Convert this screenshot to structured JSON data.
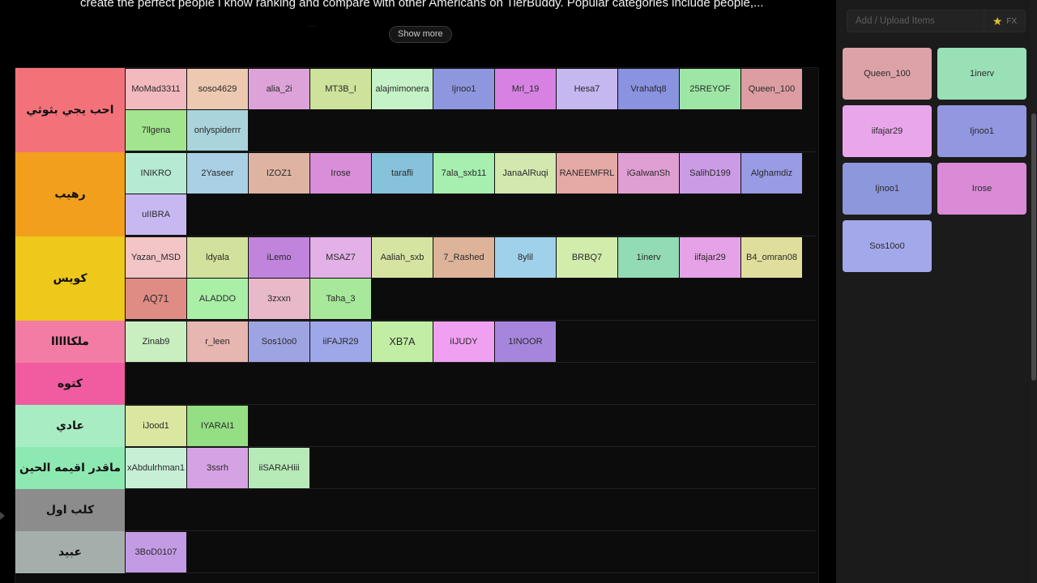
{
  "description": {
    "text": "create the perfect people i know ranking and compare with other Americans on TierBuddy. Popular categories include people,...",
    "faded_line": "...",
    "show_more_label": "Show more"
  },
  "tiers": [
    {
      "label": "احب يجي بثوثي",
      "color": "#f3727a",
      "items": [
        {
          "name": "MoMad3311",
          "color": "#f2b9bf"
        },
        {
          "name": "soso4629",
          "color": "#ecc9b0"
        },
        {
          "name": "alia_2i",
          "color": "#dda3d9"
        },
        {
          "name": "MT3B_I",
          "color": "#cde29a"
        },
        {
          "name": "alajmimonera",
          "color": "#c5f2c7"
        },
        {
          "name": "Ijnoo1",
          "color": "#8e97de"
        },
        {
          "name": "Mrl_19",
          "color": "#d782e3"
        },
        {
          "name": "Hesa7",
          "color": "#c5b7ef"
        },
        {
          "name": "Vrahafq8",
          "color": "#8a93e0"
        },
        {
          "name": "25REYOF",
          "color": "#9ee6a6"
        },
        {
          "name": "Queen_100",
          "color": "#dc9ea3"
        },
        {
          "name": "7llgena",
          "color": "#a3e48f"
        },
        {
          "name": "onlyspiderrr",
          "color": "#a9d4dc"
        }
      ]
    },
    {
      "label": "رهيب",
      "color": "#f29f1e",
      "items": [
        {
          "name": "INIKRO",
          "color": "#b6ead2"
        },
        {
          "name": "2Yaseer",
          "color": "#a9d0e4"
        },
        {
          "name": "IZOZ1",
          "color": "#ddb4a1"
        },
        {
          "name": "Irose",
          "color": "#d88ed8"
        },
        {
          "name": "tarafli",
          "color": "#86c2da"
        },
        {
          "name": "7ala_sxb11",
          "color": "#a6efae"
        },
        {
          "name": "JanaAlRuqi",
          "color": "#d3e8af"
        },
        {
          "name": "RANEEMFRL",
          "color": "#e5a9a6"
        },
        {
          "name": "iGalwanSh",
          "color": "#e09fd2"
        },
        {
          "name": "SalihD199",
          "color": "#cb9be6"
        },
        {
          "name": "Alghamdiz",
          "color": "#999be4"
        },
        {
          "name": "uIIBRA",
          "color": "#c8b8f2"
        }
      ]
    },
    {
      "label": "كويس",
      "color": "#eec81b",
      "items": [
        {
          "name": "Yazan_MSD",
          "color": "#f2c5c6"
        },
        {
          "name": "ldyala",
          "color": "#d2e19b"
        },
        {
          "name": "iLemo",
          "color": "#c184dc"
        },
        {
          "name": "MSAZ7",
          "color": "#e3b1e8"
        },
        {
          "name": "Aaliah_sxb",
          "color": "#d6e4a2"
        },
        {
          "name": "7_Rashed",
          "color": "#ddb49a"
        },
        {
          "name": "8ylil",
          "color": "#9fd1ea"
        },
        {
          "name": "BRBQ7",
          "color": "#d2ecab"
        },
        {
          "name": "1inerv",
          "color": "#93dbb4"
        },
        {
          "name": "iifajar29",
          "color": "#e5a2e6"
        },
        {
          "name": "B4_omran08",
          "color": "#e0de9c"
        },
        {
          "name": "AQ71",
          "color": "#df8c85",
          "big": true
        },
        {
          "name": "ALADDO",
          "color": "#a9efa6"
        },
        {
          "name": "3zxxn",
          "color": "#e8b9c9"
        },
        {
          "name": "Taha_3",
          "color": "#a7e89a"
        }
      ]
    },
    {
      "label": "ملكااااا",
      "color": "#f27ca4",
      "items": [
        {
          "name": "Zinab9",
          "color": "#c9efc0"
        },
        {
          "name": "r_leen",
          "color": "#e8b6b0"
        },
        {
          "name": "Sos10o0",
          "color": "#9ea4e2"
        },
        {
          "name": "iiFAJR29",
          "color": "#9ea7e8"
        },
        {
          "name": "XB7A",
          "color": "#c1eda5",
          "big": true
        },
        {
          "name": "iIJUDY",
          "color": "#efa0f0"
        },
        {
          "name": "1INOOR",
          "color": "#a686dc"
        }
      ]
    },
    {
      "label": "كتوه",
      "color": "#f05c9f",
      "items": []
    },
    {
      "label": "عادي",
      "color": "#a8ecc3",
      "items": [
        {
          "name": "iJood1",
          "color": "#dbe7a1"
        },
        {
          "name": "IYARAI1",
          "color": "#94de83"
        }
      ]
    },
    {
      "label": "ماقدر اقيمه الحين",
      "color": "#8ee8b2",
      "items": [
        {
          "name": "xAbdulrhman1",
          "color": "#c6efd6"
        },
        {
          "name": "3ssrh",
          "color": "#d5a3e3"
        },
        {
          "name": "iiSARAHiii",
          "color": "#b6eab7"
        }
      ]
    },
    {
      "label": "كلب اول",
      "color": "#8c8c8c",
      "items": []
    },
    {
      "label": "عبيد",
      "color": "#a4aeaa",
      "items": [
        {
          "name": "3BoD0107",
          "color": "#c39be4"
        }
      ]
    }
  ],
  "sidebar": {
    "add_placeholder": "Add / Upload Items",
    "fx_label": "FX",
    "fx_icon": "star-icon",
    "pool": [
      {
        "name": "Queen_100",
        "color": "#dca2a7"
      },
      {
        "name": "1inerv",
        "color": "#99e0b7"
      },
      {
        "name": "iifajar29",
        "color": "#eaa6ea"
      },
      {
        "name": "Ijnoo1",
        "color": "#9297e0"
      },
      {
        "name": "Ijnoo1",
        "color": "#8d97dc"
      },
      {
        "name": "Irose",
        "color": "#db8bd6"
      },
      {
        "name": "Sos10o0",
        "color": "#a3a8ea"
      }
    ]
  }
}
